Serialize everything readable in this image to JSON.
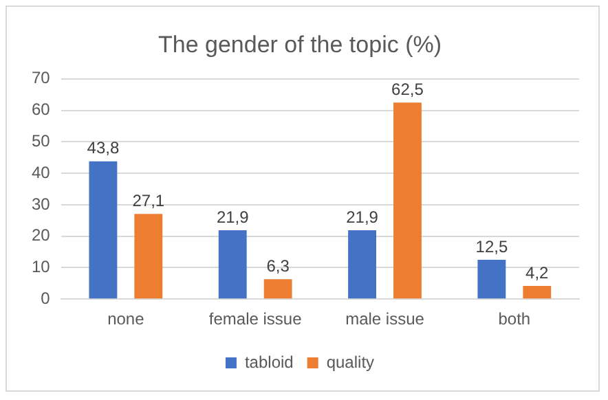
{
  "chart_data": {
    "type": "bar",
    "title": "The gender of the topic (%)",
    "categories": [
      "none",
      "female issue",
      "male issue",
      "both"
    ],
    "series": [
      {
        "name": "tabloid",
        "color": "#4472c4",
        "values": [
          43.8,
          21.9,
          21.9,
          12.5
        ],
        "value_labels": [
          "43,8",
          "21,9",
          "21,9",
          "12,5"
        ]
      },
      {
        "name": "quality",
        "color": "#ed7d31",
        "values": [
          27.1,
          6.3,
          62.5,
          4.2
        ],
        "value_labels": [
          "27,1",
          "6,3",
          "62,5",
          "4,2"
        ]
      }
    ],
    "ylim": [
      0,
      70
    ],
    "yticks": [
      0,
      10,
      20,
      30,
      40,
      50,
      60,
      70
    ],
    "grid": "y",
    "legend": "bottom"
  }
}
